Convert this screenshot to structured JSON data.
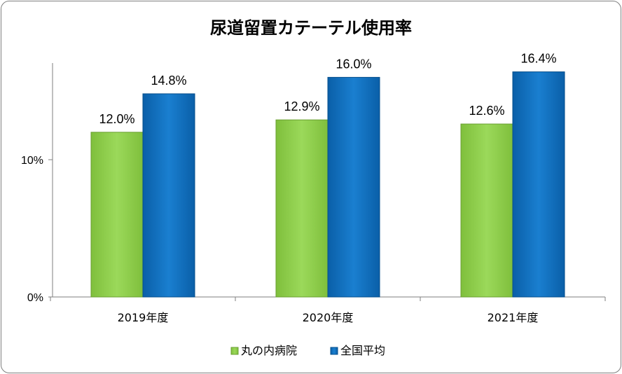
{
  "chart_data": {
    "type": "bar",
    "title": "尿道留置カテーテル使用率",
    "categories": [
      "2019年度",
      "2020年度",
      "2021年度"
    ],
    "series": [
      {
        "name": "丸の内病院",
        "values": [
          12.0,
          12.9,
          12.6
        ],
        "labels": [
          "12.0%",
          "12.9%",
          "12.6%"
        ],
        "color": "#92d050"
      },
      {
        "name": "全国平均",
        "values": [
          14.8,
          16.0,
          16.4
        ],
        "labels": [
          "14.8%",
          "16.0%",
          "16.4%"
        ],
        "color": "#0070c0"
      }
    ],
    "y_ticks": [
      {
        "value": 0,
        "label": "0%"
      },
      {
        "value": 10,
        "label": "10%"
      }
    ],
    "ylim": [
      0,
      17
    ],
    "ylabel": "",
    "xlabel": "",
    "grid": false,
    "legend_position": "bottom"
  }
}
